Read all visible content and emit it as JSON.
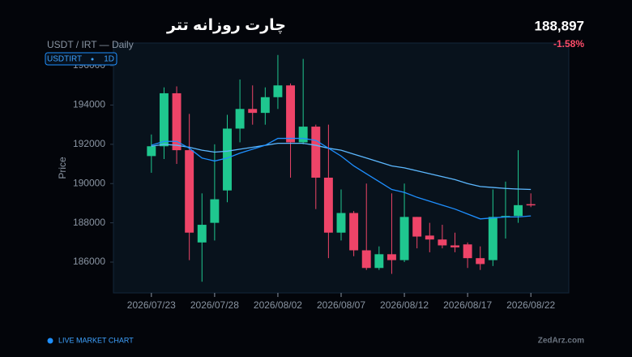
{
  "header": {
    "title": "چارت روزانه تتر",
    "subtitle": "USDT / IRT — Daily",
    "symbol": "USDTIRT",
    "interval": "1D",
    "price": "188,897",
    "change": "-1.58%"
  },
  "footer": {
    "status": "LIVE MARKET CHART",
    "brand": "ZedArz.com"
  },
  "chart_data": {
    "type": "candlestick",
    "y_label": "Price",
    "x": [
      "2026/07/23",
      "2026/07/24",
      "2026/07/25",
      "2026/07/26",
      "2026/07/27",
      "2026/07/28",
      "2026/07/29",
      "2026/07/30",
      "2026/07/31",
      "2026/08/01",
      "2026/08/02",
      "2026/08/03",
      "2026/08/04",
      "2026/08/05",
      "2026/08/06",
      "2026/08/07",
      "2026/08/08",
      "2026/08/09",
      "2026/08/10",
      "2026/08/11",
      "2026/08/12",
      "2026/08/13",
      "2026/08/14",
      "2026/08/15",
      "2026/08/16",
      "2026/08/17",
      "2026/08/18",
      "2026/08/19",
      "2026/08/20",
      "2026/08/21",
      "2026/08/22"
    ],
    "open": [
      191400,
      191900,
      194600,
      191700,
      187000,
      188000,
      189650,
      192800,
      193800,
      193600,
      194400,
      195000,
      192100,
      192900,
      190300,
      187500,
      188500,
      186600,
      185700,
      186400,
      186100,
      188300,
      187350,
      187150,
      186850,
      186900,
      186200,
      186100,
      188270,
      188350,
      188950
    ],
    "high": [
      192500,
      194900,
      194950,
      193550,
      189500,
      192000,
      193500,
      195300,
      195000,
      194900,
      196550,
      195100,
      196350,
      193000,
      193000,
      189700,
      188600,
      190000,
      186800,
      189500,
      190000,
      188300,
      188000,
      187900,
      187500,
      187000,
      186800,
      189700,
      190100,
      191700,
      189500
    ],
    "low": [
      190550,
      191250,
      191000,
      186100,
      185000,
      187100,
      189050,
      192100,
      193000,
      193000,
      193800,
      190300,
      192000,
      188700,
      186200,
      187100,
      186300,
      185600,
      185600,
      185400,
      186000,
      186700,
      186500,
      186700,
      186500,
      185700,
      185600,
      185800,
      187200,
      188000,
      188800
    ],
    "close": [
      191900,
      194600,
      191700,
      187500,
      187900,
      189200,
      192800,
      193800,
      193600,
      194400,
      195000,
      192100,
      192900,
      190300,
      187500,
      188500,
      186600,
      185700,
      186400,
      186100,
      188300,
      187300,
      187150,
      186850,
      186750,
      186200,
      185900,
      188300,
      188350,
      188900,
      188900
    ],
    "up_color": "#1fc78f",
    "down_color": "#ee4468",
    "series": [
      {
        "color": "#5cb8ff",
        "values": [
          191900,
          192000,
          191950,
          191850,
          191700,
          191600,
          191650,
          191750,
          191850,
          191950,
          192050,
          192050,
          192050,
          191950,
          191800,
          191700,
          191500,
          191300,
          191100,
          190900,
          190800,
          190650,
          190500,
          190350,
          190200,
          190000,
          189850,
          189800,
          189750,
          189720,
          189700
        ]
      },
      {
        "color": "#1e8fff",
        "values": [
          191950,
          192150,
          192150,
          191800,
          191300,
          191150,
          191300,
          191550,
          191750,
          191950,
          192300,
          192300,
          192300,
          192200,
          191800,
          191400,
          190900,
          190500,
          190100,
          189700,
          189550,
          189300,
          189100,
          188900,
          188700,
          188450,
          188200,
          188250,
          188300,
          188300,
          188350
        ]
      }
    ],
    "xlim": [
      "2026/07/20",
      "2026/08/25"
    ],
    "xticks": [
      "2026/07/23",
      "2026/07/28",
      "2026/08/02",
      "2026/08/07",
      "2026/08/12",
      "2026/08/17",
      "2026/08/22"
    ],
    "ylim": [
      184430,
      197160
    ],
    "yticks": [
      186000,
      188000,
      190000,
      192000,
      194000,
      196000
    ],
    "grid": false
  }
}
